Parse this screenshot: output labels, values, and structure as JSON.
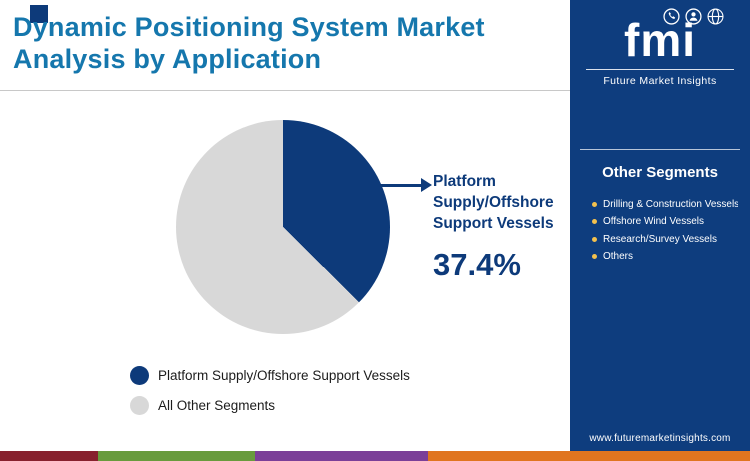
{
  "header": {
    "title_line1": "Dynamic Positioning System Market",
    "title_line2": "Analysis by Application"
  },
  "chart_data": {
    "type": "pie",
    "title": "Dynamic Positioning System Market Analysis by Application",
    "slices": [
      {
        "label": "Platform Supply/Offshore Support Vessels",
        "value": 37.4,
        "color": "#0d3a7a"
      },
      {
        "label": "All Other Segments",
        "value": 62.6,
        "color": "#d8d8d8"
      }
    ],
    "callout": {
      "lines": [
        "Platform",
        "Supply/Offshore",
        "Support Vessels"
      ],
      "value": "37.4%"
    },
    "legend_position": "bottom-left"
  },
  "sidebar": {
    "logo_text": "fmi",
    "logo_icons": [
      "phone-icon",
      "person-icon",
      "globe-icon"
    ],
    "brand": "Future Market Insights",
    "other_segments_title": "Other Segments",
    "items": [
      "Drilling & Construction Vessels",
      "Offshore Wind Vessels",
      "Research/Survey Vessels",
      "Others"
    ],
    "website": "www.futuremarketinsights.com"
  },
  "colors": {
    "navy": "#0d3a7a",
    "title_blue": "#1577ad",
    "sidebar_blue": "#0e3d7e",
    "gray_slice": "#d8d8d8",
    "bullet_yellow": "#f2c14e"
  },
  "footer_strip": {
    "segments": [
      {
        "color": "#87212e",
        "width": "13%"
      },
      {
        "color": "#689b3d",
        "width": "21%"
      },
      {
        "color": "#7b3f98",
        "width": "23%"
      },
      {
        "color": "#e0751f",
        "width": "43%"
      }
    ]
  }
}
